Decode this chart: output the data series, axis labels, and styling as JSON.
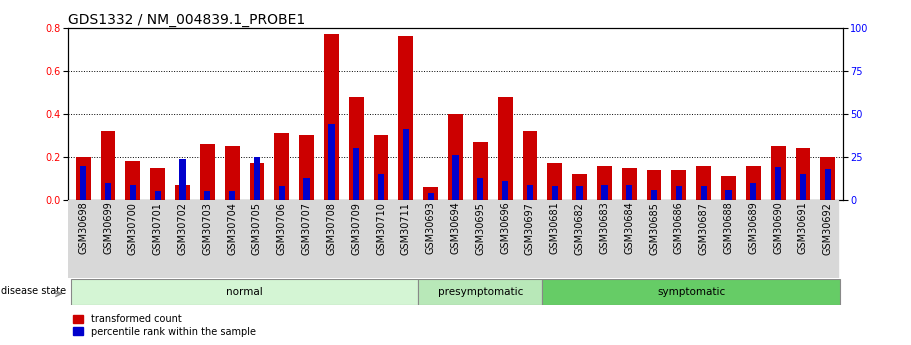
{
  "title": "GDS1332 / NM_004839.1_PROBE1",
  "samples": [
    "GSM30698",
    "GSM30699",
    "GSM30700",
    "GSM30701",
    "GSM30702",
    "GSM30703",
    "GSM30704",
    "GSM30705",
    "GSM30706",
    "GSM30707",
    "GSM30708",
    "GSM30709",
    "GSM30710",
    "GSM30711",
    "GSM30693",
    "GSM30694",
    "GSM30695",
    "GSM30696",
    "GSM30697",
    "GSM30681",
    "GSM30682",
    "GSM30683",
    "GSM30684",
    "GSM30685",
    "GSM30686",
    "GSM30687",
    "GSM30688",
    "GSM30689",
    "GSM30690",
    "GSM30691",
    "GSM30692"
  ],
  "transformed_count": [
    0.2,
    0.32,
    0.18,
    0.15,
    0.07,
    0.26,
    0.25,
    0.17,
    0.31,
    0.3,
    0.77,
    0.48,
    0.3,
    0.76,
    0.06,
    0.4,
    0.27,
    0.48,
    0.32,
    0.17,
    0.12,
    0.16,
    0.15,
    0.14,
    0.14,
    0.16,
    0.11,
    0.16,
    0.25,
    0.24,
    0.2
  ],
  "percentile_rank_pct": [
    20,
    10,
    9,
    5,
    24,
    5,
    5,
    25,
    8,
    13,
    44,
    30,
    15,
    41,
    4,
    26,
    13,
    11,
    9,
    8,
    8,
    9,
    9,
    6,
    8,
    8,
    6,
    10,
    19,
    15,
    18
  ],
  "g_starts": [
    0,
    14,
    19
  ],
  "g_ends": [
    14,
    19,
    31
  ],
  "g_labels": [
    "normal",
    "presymptomatic",
    "symptomatic"
  ],
  "g_colors_light": [
    "#d4f5d4",
    "#b8e8b8",
    "#66cc66"
  ],
  "bar_color_red": "#cc0000",
  "bar_color_blue": "#0000cc",
  "ylim_left": [
    0.0,
    0.8
  ],
  "ylim_right": [
    0,
    100
  ],
  "yticks_left": [
    0,
    0.2,
    0.4,
    0.6,
    0.8
  ],
  "yticks_right": [
    0,
    25,
    50,
    75,
    100
  ],
  "title_fontsize": 10,
  "tick_fontsize": 7,
  "label_fontsize": 8
}
